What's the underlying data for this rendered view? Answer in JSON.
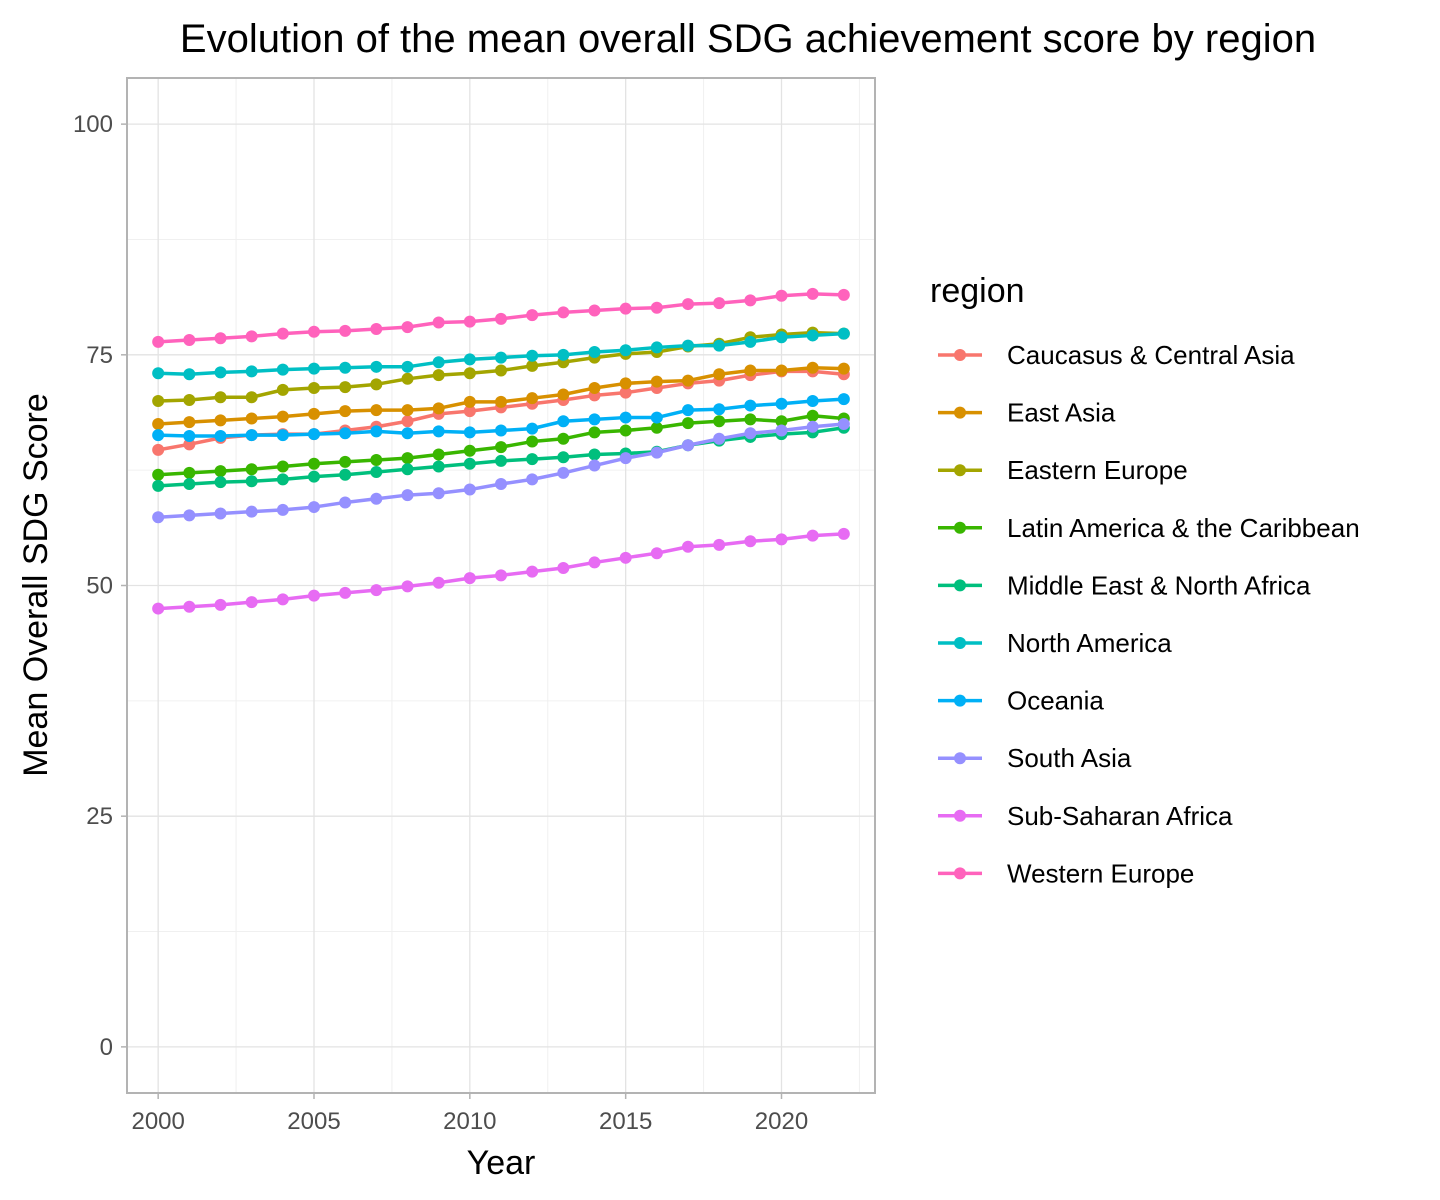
{
  "chart_data": {
    "type": "line",
    "title": "Evolution of the mean overall SDG achievement score by region",
    "xlabel": "Year",
    "ylabel": "Mean Overall SDG Score",
    "xlim": [
      1999,
      2023
    ],
    "ylim": [
      -5,
      105
    ],
    "x_ticks": [
      2000,
      2005,
      2010,
      2015,
      2020
    ],
    "y_ticks": [
      0,
      25,
      50,
      75,
      100
    ],
    "grid": true,
    "legend_title": "region",
    "legend_position": "right",
    "x": [
      2000,
      2001,
      2002,
      2003,
      2004,
      2005,
      2006,
      2007,
      2008,
      2009,
      2010,
      2011,
      2012,
      2013,
      2014,
      2015,
      2016,
      2017,
      2018,
      2019,
      2020,
      2021,
      2022
    ],
    "series": [
      {
        "name": "Caucasus & Central Asia",
        "color": "#F8766D",
        "values": [
          64.7,
          65.3,
          66.0,
          66.3,
          66.4,
          66.4,
          66.8,
          67.2,
          67.8,
          68.6,
          68.9,
          69.3,
          69.7,
          70.1,
          70.6,
          70.9,
          71.4,
          71.9,
          72.2,
          72.8,
          73.2,
          73.2,
          72.9
        ]
      },
      {
        "name": "East Asia",
        "color": "#D89000",
        "values": [
          67.5,
          67.7,
          67.9,
          68.1,
          68.3,
          68.6,
          68.9,
          69.0,
          69.0,
          69.2,
          69.9,
          69.9,
          70.3,
          70.7,
          71.4,
          71.9,
          72.1,
          72.2,
          72.9,
          73.3,
          73.3,
          73.6,
          73.5
        ]
      },
      {
        "name": "Eastern Europe",
        "color": "#A3A500",
        "values": [
          70.0,
          70.1,
          70.4,
          70.4,
          71.2,
          71.4,
          71.5,
          71.8,
          72.4,
          72.8,
          73.0,
          73.3,
          73.8,
          74.2,
          74.7,
          75.1,
          75.3,
          75.9,
          76.2,
          76.9,
          77.2,
          77.4,
          77.3
        ]
      },
      {
        "name": "Latin America & the Caribbean",
        "color": "#39B600",
        "values": [
          62.0,
          62.2,
          62.4,
          62.6,
          62.9,
          63.2,
          63.4,
          63.6,
          63.8,
          64.2,
          64.6,
          65.0,
          65.6,
          65.9,
          66.6,
          66.8,
          67.1,
          67.6,
          67.8,
          68.0,
          67.8,
          68.4,
          68.1
        ]
      },
      {
        "name": "Middle East & North Africa",
        "color": "#00BF7D",
        "values": [
          60.8,
          61.0,
          61.2,
          61.3,
          61.5,
          61.8,
          62.0,
          62.3,
          62.6,
          62.9,
          63.2,
          63.5,
          63.7,
          63.9,
          64.2,
          64.3,
          64.5,
          65.2,
          65.7,
          66.1,
          66.4,
          66.6,
          67.1
        ]
      },
      {
        "name": "North America",
        "color": "#00BFC4",
        "values": [
          73.0,
          72.9,
          73.1,
          73.2,
          73.4,
          73.5,
          73.6,
          73.7,
          73.7,
          74.2,
          74.5,
          74.7,
          74.9,
          75.0,
          75.3,
          75.5,
          75.8,
          76.0,
          76.0,
          76.4,
          76.9,
          77.1,
          77.3
        ]
      },
      {
        "name": "Oceania",
        "color": "#00B0F6",
        "values": [
          66.3,
          66.2,
          66.2,
          66.3,
          66.3,
          66.4,
          66.5,
          66.7,
          66.5,
          66.7,
          66.6,
          66.8,
          67.0,
          67.8,
          68.0,
          68.2,
          68.2,
          69.0,
          69.1,
          69.5,
          69.7,
          70.0,
          70.2
        ]
      },
      {
        "name": "South Asia",
        "color": "#9590FF",
        "values": [
          57.4,
          57.6,
          57.8,
          58.0,
          58.2,
          58.5,
          59.0,
          59.4,
          59.8,
          60.0,
          60.4,
          61.0,
          61.5,
          62.2,
          63.0,
          63.8,
          64.4,
          65.2,
          65.9,
          66.5,
          66.8,
          67.2,
          67.5
        ]
      },
      {
        "name": "Sub-Saharan Africa",
        "color": "#E76BF3",
        "values": [
          47.5,
          47.7,
          47.9,
          48.2,
          48.5,
          48.9,
          49.2,
          49.5,
          49.9,
          50.3,
          50.8,
          51.1,
          51.5,
          51.9,
          52.5,
          53.0,
          53.5,
          54.2,
          54.4,
          54.8,
          55.0,
          55.4,
          55.6
        ]
      },
      {
        "name": "Western Europe",
        "color": "#FF62BC",
        "values": [
          76.4,
          76.6,
          76.8,
          77.0,
          77.3,
          77.5,
          77.6,
          77.8,
          78.0,
          78.5,
          78.6,
          78.9,
          79.3,
          79.6,
          79.8,
          80.0,
          80.1,
          80.5,
          80.6,
          80.9,
          81.4,
          81.6,
          81.5
        ]
      }
    ]
  }
}
